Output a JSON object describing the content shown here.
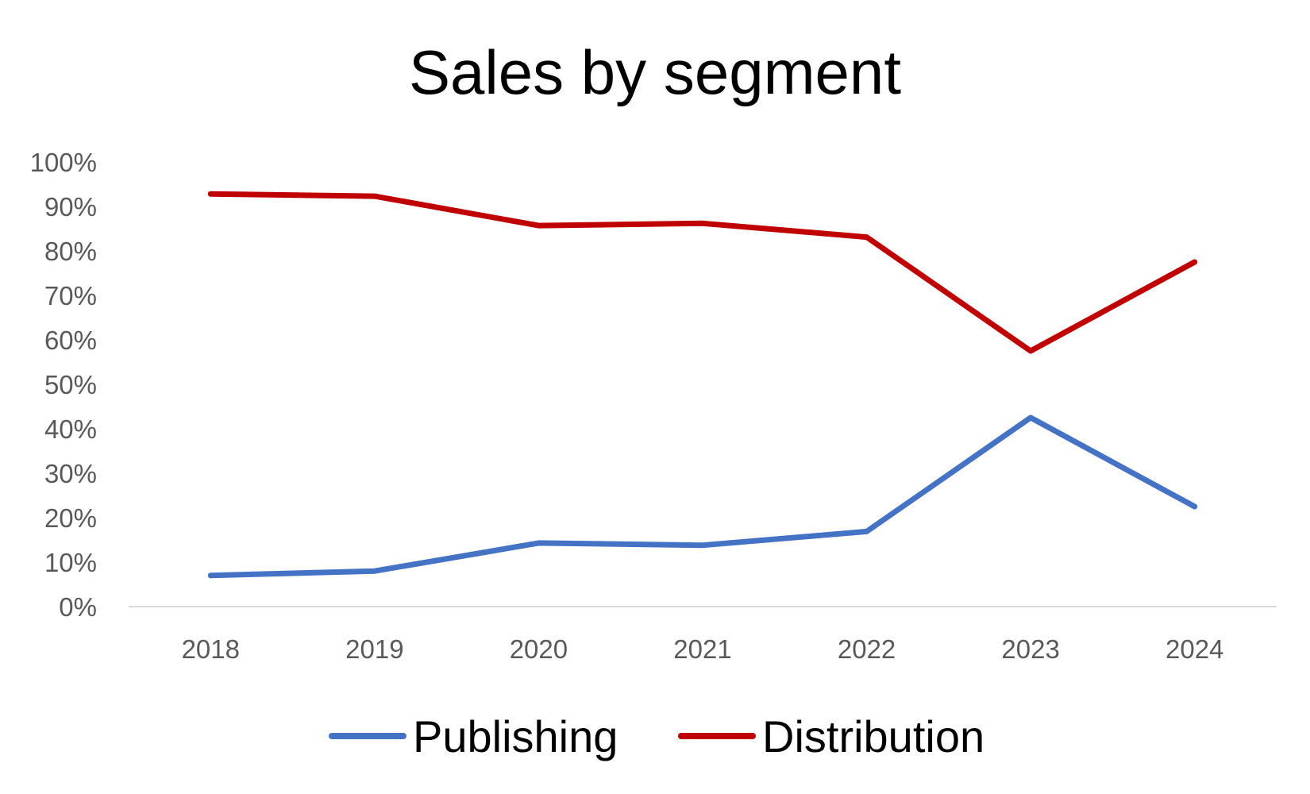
{
  "chart_data": {
    "type": "line",
    "title": "Sales by segment",
    "xlabel": "",
    "ylabel": "",
    "categories": [
      "2018",
      "2019",
      "2020",
      "2021",
      "2022",
      "2023",
      "2024"
    ],
    "y_ticks": [
      "0%",
      "10%",
      "20%",
      "30%",
      "40%",
      "50%",
      "60%",
      "70%",
      "80%",
      "90%",
      "100%"
    ],
    "ylim": [
      0,
      100
    ],
    "y_unit": "%",
    "grid": false,
    "legend_position": "bottom",
    "series": [
      {
        "name": "Publishing",
        "color": "#4472c4",
        "values": [
          7,
          8,
          14.3,
          13.8,
          16.9,
          42.5,
          22.5
        ]
      },
      {
        "name": "Distribution",
        "color": "#c00000",
        "values": [
          92.8,
          92.3,
          85.7,
          86.2,
          83.1,
          57.5,
          77.5
        ]
      }
    ]
  }
}
